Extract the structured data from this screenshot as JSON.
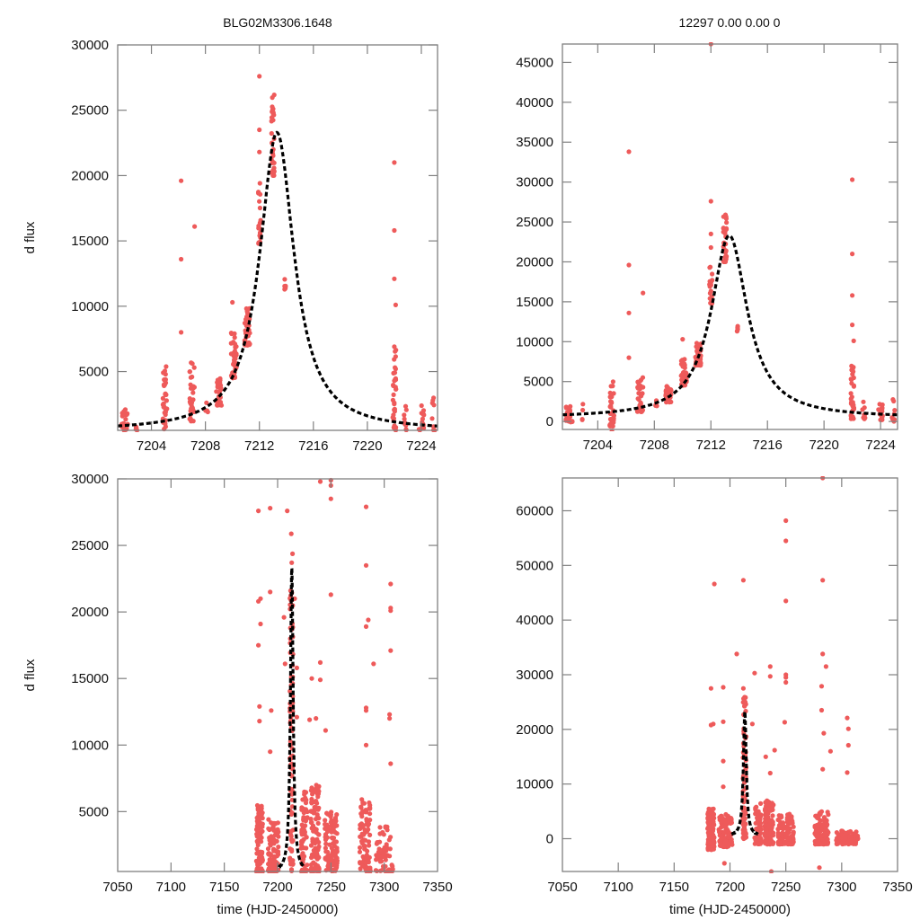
{
  "figure": {
    "title_left": "BLG02M3306.1648",
    "title_right": "12297  0.00  0.00  0",
    "colors": {
      "points": "#ee5a5a",
      "model": "#000000",
      "frame": "#808080"
    }
  },
  "chart_data": [
    {
      "type": "scatter",
      "id": "top-left",
      "title": "BLG02M3306.1648",
      "xlabel": "",
      "ylabel": "d flux",
      "xlim": [
        7201.5,
        7225.2
      ],
      "ylim": [
        500,
        30000
      ],
      "xticks": [
        7204,
        7208,
        7212,
        7216,
        7220,
        7224
      ],
      "yticks": [
        5000,
        10000,
        15000,
        20000,
        25000,
        30000
      ],
      "grid": false,
      "model": {
        "t0": 7213.3,
        "peak": 23300,
        "base": 450,
        "width": 1.55
      },
      "clusters": [
        {
          "t": 7202.0,
          "spread": 0.25,
          "ymin": 500,
          "ymax": 2100,
          "n": 30
        },
        {
          "t": 7202.9,
          "spread": 0.1,
          "ymin": 500,
          "ymax": 2600,
          "n": 4
        },
        {
          "t": 7205.0,
          "spread": 0.15,
          "ymin": 600,
          "ymax": 5400,
          "n": 35
        },
        {
          "t": 7207.0,
          "spread": 0.2,
          "ymin": 1200,
          "ymax": 5800,
          "n": 35
        },
        {
          "t": 7208.1,
          "spread": 0.1,
          "ymin": 1800,
          "ymax": 2700,
          "n": 4
        },
        {
          "t": 7209.0,
          "spread": 0.2,
          "ymin": 2400,
          "ymax": 4500,
          "n": 30
        },
        {
          "t": 7210.1,
          "spread": 0.2,
          "ymin": 4500,
          "ymax": 8000,
          "n": 45
        },
        {
          "t": 7211.1,
          "spread": 0.2,
          "ymin": 7000,
          "ymax": 10000,
          "n": 40
        },
        {
          "t": 7212.0,
          "spread": 0.1,
          "ymin": 14800,
          "ymax": 20000,
          "n": 20
        },
        {
          "t": 7213.0,
          "spread": 0.12,
          "ymin": 20000,
          "ymax": 26200,
          "n": 35
        },
        {
          "t": 7213.9,
          "spread": 0.05,
          "ymin": 11200,
          "ymax": 13000,
          "n": 6
        },
        {
          "t": 7222.0,
          "spread": 0.12,
          "ymin": 500,
          "ymax": 7000,
          "n": 35
        },
        {
          "t": 7222.8,
          "spread": 0.1,
          "ymin": 500,
          "ymax": 2900,
          "n": 10
        },
        {
          "t": 7224.0,
          "spread": 0.2,
          "ymin": 500,
          "ymax": 2500,
          "n": 18
        },
        {
          "t": 7224.9,
          "spread": 0.1,
          "ymin": 500,
          "ymax": 3500,
          "n": 8
        }
      ],
      "outliers": [
        [
          7206.2,
          19600
        ],
        [
          7206.2,
          13600
        ],
        [
          7206.2,
          8000
        ],
        [
          7207.2,
          16100
        ],
        [
          7210.0,
          10300
        ],
        [
          7212.0,
          27600
        ],
        [
          7212.0,
          23500
        ],
        [
          7212.0,
          21800
        ],
        [
          7222.0,
          21000
        ],
        [
          7222.0,
          15800
        ],
        [
          7222.0,
          12100
        ],
        [
          7222.1,
          10100
        ]
      ]
    },
    {
      "type": "scatter",
      "id": "top-right",
      "title": "12297  0.00  0.00  0",
      "xlabel": "",
      "ylabel": "",
      "xlim": [
        7201.5,
        7225.2
      ],
      "ylim": [
        -1000,
        47300
      ],
      "xticks": [
        7204,
        7208,
        7212,
        7216,
        7220,
        7224
      ],
      "yticks": [
        0,
        5000,
        10000,
        15000,
        20000,
        25000,
        30000,
        35000,
        40000,
        45000
      ],
      "grid": false,
      "model": {
        "t0": 7213.3,
        "peak": 23300,
        "base": 450,
        "width": 1.55
      },
      "clusters": [
        {
          "t": 7202.0,
          "spread": 0.25,
          "ymin": -100,
          "ymax": 2100,
          "n": 30
        },
        {
          "t": 7202.9,
          "spread": 0.1,
          "ymin": 200,
          "ymax": 2600,
          "n": 4
        },
        {
          "t": 7205.0,
          "spread": 0.15,
          "ymin": -600,
          "ymax": 5400,
          "n": 35
        },
        {
          "t": 7207.0,
          "spread": 0.2,
          "ymin": 1200,
          "ymax": 5800,
          "n": 35
        },
        {
          "t": 7208.1,
          "spread": 0.1,
          "ymin": 1800,
          "ymax": 2700,
          "n": 4
        },
        {
          "t": 7209.0,
          "spread": 0.2,
          "ymin": 2400,
          "ymax": 4500,
          "n": 30
        },
        {
          "t": 7210.1,
          "spread": 0.2,
          "ymin": 4500,
          "ymax": 8000,
          "n": 45
        },
        {
          "t": 7211.1,
          "spread": 0.2,
          "ymin": 7000,
          "ymax": 10000,
          "n": 40
        },
        {
          "t": 7212.0,
          "spread": 0.1,
          "ymin": 14800,
          "ymax": 20000,
          "n": 20
        },
        {
          "t": 7213.0,
          "spread": 0.12,
          "ymin": 20000,
          "ymax": 26200,
          "n": 35
        },
        {
          "t": 7213.9,
          "spread": 0.05,
          "ymin": 11200,
          "ymax": 13000,
          "n": 6
        },
        {
          "t": 7222.0,
          "spread": 0.12,
          "ymin": 300,
          "ymax": 7000,
          "n": 35
        },
        {
          "t": 7222.8,
          "spread": 0.1,
          "ymin": 300,
          "ymax": 2900,
          "n": 10
        },
        {
          "t": 7224.0,
          "spread": 0.2,
          "ymin": 200,
          "ymax": 2500,
          "n": 18
        },
        {
          "t": 7224.9,
          "spread": 0.1,
          "ymin": 0,
          "ymax": 3500,
          "n": 8
        }
      ],
      "outliers": [
        [
          7206.2,
          33800
        ],
        [
          7206.2,
          19600
        ],
        [
          7206.2,
          13600
        ],
        [
          7206.2,
          8000
        ],
        [
          7207.2,
          16100
        ],
        [
          7210.0,
          10300
        ],
        [
          7212.0,
          47300
        ],
        [
          7212.0,
          27600
        ],
        [
          7212.0,
          23500
        ],
        [
          7212.0,
          21800
        ],
        [
          7222.0,
          30300
        ],
        [
          7222.0,
          21000
        ],
        [
          7222.0,
          15800
        ],
        [
          7222.0,
          12100
        ],
        [
          7222.1,
          10100
        ],
        [
          7205.0,
          -1200
        ]
      ]
    },
    {
      "type": "scatter",
      "id": "bottom-left",
      "title": "",
      "xlabel": "time (HJD-2450000)",
      "ylabel": "d flux",
      "xlim": [
        7050,
        7350
      ],
      "ylim": [
        500,
        30000
      ],
      "xticks": [
        7050,
        7100,
        7150,
        7200,
        7250,
        7300,
        7350
      ],
      "yticks": [
        5000,
        10000,
        15000,
        20000,
        25000,
        30000
      ],
      "grid": false,
      "model": {
        "t0": 7213.3,
        "peak": 23300,
        "base": 450,
        "width": 1.55,
        "trange": [
          7201.5,
          7225
        ]
      },
      "clusters": [
        {
          "t": 7183,
          "spread": 3,
          "ymin": 500,
          "ymax": 5500,
          "n": 120
        },
        {
          "t": 7196,
          "spread": 5,
          "ymin": 500,
          "ymax": 4500,
          "n": 90
        },
        {
          "t": 7213,
          "spread": 1.5,
          "ymin": 500,
          "ymax": 26000,
          "n": 90
        },
        {
          "t": 7225,
          "spread": 3,
          "ymin": 500,
          "ymax": 6500,
          "n": 60
        },
        {
          "t": 7235,
          "spread": 4,
          "ymin": 500,
          "ymax": 7000,
          "n": 110
        },
        {
          "t": 7250,
          "spread": 6,
          "ymin": 500,
          "ymax": 5000,
          "n": 110
        },
        {
          "t": 7282,
          "spread": 5,
          "ymin": 500,
          "ymax": 6000,
          "n": 90
        },
        {
          "t": 7300,
          "spread": 8,
          "ymin": 500,
          "ymax": 4000,
          "n": 60
        }
      ],
      "outliers": [
        [
          7182,
          27600
        ],
        [
          7193,
          27800
        ],
        [
          7209,
          27600
        ],
        [
          7240,
          29800
        ],
        [
          7250,
          29900
        ],
        [
          7250,
          29500
        ],
        [
          7250,
          28500
        ],
        [
          7283,
          27900
        ],
        [
          7283,
          23500
        ],
        [
          7306,
          22100
        ],
        [
          7182,
          20800
        ],
        [
          7184,
          21000
        ],
        [
          7193,
          21500
        ],
        [
          7184,
          19100
        ],
        [
          7182,
          17500
        ],
        [
          7216,
          21000
        ],
        [
          7250,
          21300
        ],
        [
          7206,
          19600
        ],
        [
          7283,
          18900
        ],
        [
          7285,
          19400
        ],
        [
          7306,
          20300
        ],
        [
          7306,
          20100
        ],
        [
          7306,
          17100
        ],
        [
          7290,
          16100
        ],
        [
          7207,
          16100
        ],
        [
          7218,
          15800
        ],
        [
          7240,
          16200
        ],
        [
          7232,
          15000
        ],
        [
          7240,
          14900
        ],
        [
          7183,
          12900
        ],
        [
          7194,
          12600
        ],
        [
          7183,
          11800
        ],
        [
          7218,
          12100
        ],
        [
          7230,
          11900
        ],
        [
          7236,
          12000
        ],
        [
          7245,
          11100
        ],
        [
          7283,
          12800
        ],
        [
          7283,
          12600
        ],
        [
          7305,
          12300
        ],
        [
          7305,
          12000
        ],
        [
          7193,
          9500
        ],
        [
          7283,
          10000
        ],
        [
          7306,
          8600
        ]
      ]
    },
    {
      "type": "scatter",
      "id": "bottom-right",
      "title": "",
      "xlabel": "time (HJD-2450000)",
      "ylabel": "",
      "xlim": [
        7050,
        7350
      ],
      "ylim": [
        -6000,
        66000
      ],
      "xticks": [
        7050,
        7100,
        7150,
        7200,
        7250,
        7300,
        7350
      ],
      "yticks": [
        0,
        10000,
        20000,
        30000,
        40000,
        50000,
        60000
      ],
      "grid": false,
      "model": {
        "t0": 7213.3,
        "peak": 23300,
        "base": 450,
        "width": 1.55,
        "trange": [
          7201.5,
          7225
        ]
      },
      "clusters": [
        {
          "t": 7183,
          "spread": 3,
          "ymin": -2000,
          "ymax": 5500,
          "n": 130
        },
        {
          "t": 7196,
          "spread": 6,
          "ymin": -1500,
          "ymax": 4500,
          "n": 100
        },
        {
          "t": 7213,
          "spread": 1.5,
          "ymin": 0,
          "ymax": 26000,
          "n": 90
        },
        {
          "t": 7225,
          "spread": 3,
          "ymin": -1000,
          "ymax": 6500,
          "n": 60
        },
        {
          "t": 7235,
          "spread": 4,
          "ymin": -1000,
          "ymax": 7000,
          "n": 120
        },
        {
          "t": 7250,
          "spread": 7,
          "ymin": -1000,
          "ymax": 4500,
          "n": 120
        },
        {
          "t": 7282,
          "spread": 6,
          "ymin": -1000,
          "ymax": 5000,
          "n": 130
        },
        {
          "t": 7305,
          "spread": 10,
          "ymin": -1000,
          "ymax": 1500,
          "n": 80
        }
      ],
      "outliers": [
        [
          7283,
          66000
        ],
        [
          7250,
          58200
        ],
        [
          7250,
          54500
        ],
        [
          7186,
          46600
        ],
        [
          7212,
          47300
        ],
        [
          7283,
          47300
        ],
        [
          7250,
          43500
        ],
        [
          7206,
          33800
        ],
        [
          7283,
          33800
        ],
        [
          7236,
          31500
        ],
        [
          7286,
          31500
        ],
        [
          7222,
          30300
        ],
        [
          7250,
          30000
        ],
        [
          7250,
          29500
        ],
        [
          7236,
          29700
        ],
        [
          7250,
          28600
        ],
        [
          7183,
          27500
        ],
        [
          7194,
          27700
        ],
        [
          7212,
          27500
        ],
        [
          7282,
          27900
        ],
        [
          7282,
          23500
        ],
        [
          7305,
          22100
        ],
        [
          7183,
          20800
        ],
        [
          7185,
          21000
        ],
        [
          7194,
          21400
        ],
        [
          7220,
          21000
        ],
        [
          7249,
          21300
        ],
        [
          7284,
          19300
        ],
        [
          7306,
          20100
        ],
        [
          7306,
          17100
        ],
        [
          7290,
          16000
        ],
        [
          7240,
          16200
        ],
        [
          7232,
          15000
        ],
        [
          7194,
          14200
        ],
        [
          7236,
          12000
        ],
        [
          7283,
          12700
        ],
        [
          7305,
          12100
        ],
        [
          7194,
          9500
        ],
        [
          7280,
          -5300
        ],
        [
          7237,
          -6000
        ],
        [
          7195,
          -4500
        ]
      ]
    }
  ]
}
